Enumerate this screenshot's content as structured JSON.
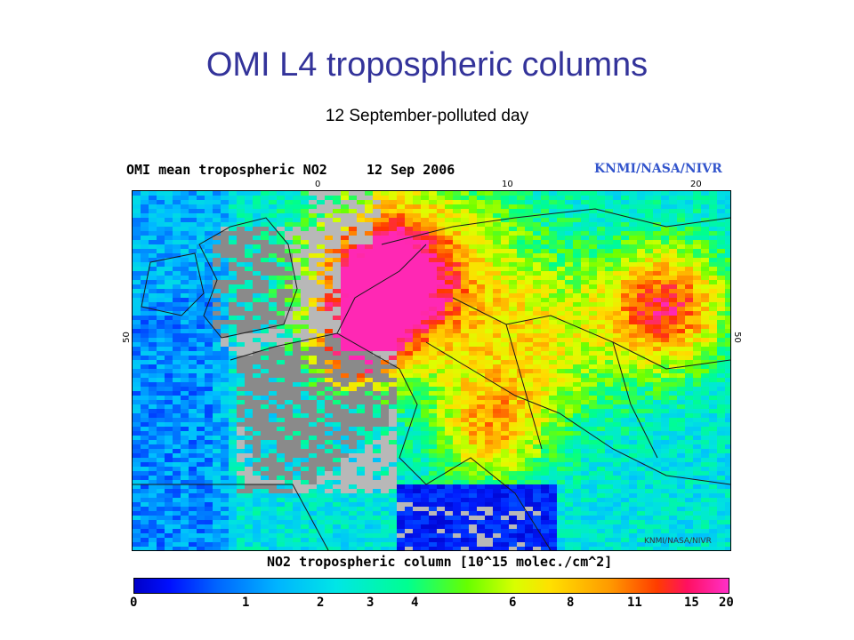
{
  "slide": {
    "title": "OMI L4 tropospheric columns",
    "subtitle": "12 September-polluted day"
  },
  "map": {
    "title": "OMI mean tropospheric NO2",
    "date": "12 Sep 2006",
    "credit": "KNMI/NASA/NIVR",
    "watermark": "KNMI/NASA/NIVR",
    "lon_ticks": [
      "0",
      "10",
      "20"
    ],
    "lat_ticks": [
      "50",
      "50"
    ],
    "colorbar_label": "NO2 tropospheric column [10^15 molec./cm^2]",
    "colorbar_ticks": [
      "0",
      "1",
      "2",
      "3",
      "4",
      "6",
      "8",
      "11",
      "15",
      "20"
    ],
    "colors": {
      "land_no_data": "#8a8a8a",
      "sea_no_data": "#b8b8b8",
      "low": "#0000c8",
      "high": "#ff30c8"
    }
  }
}
